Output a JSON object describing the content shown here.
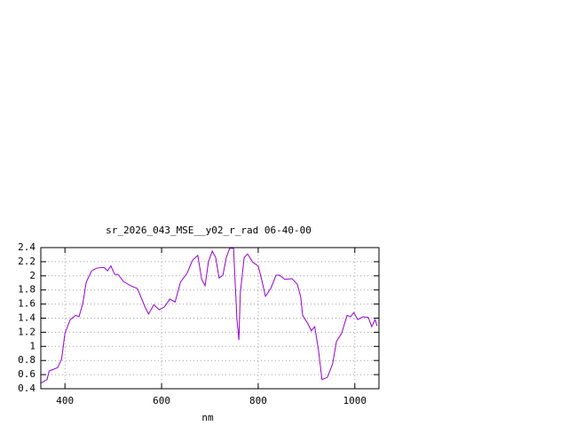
{
  "chart_data": {
    "type": "line",
    "title": "sr_2026_043_MSE__y02_r_rad 06-40-00",
    "x_label": "nm",
    "x": [
      350,
      363,
      367,
      378,
      385,
      393,
      400,
      411,
      422,
      429,
      437,
      444,
      455,
      466,
      481,
      488,
      495,
      503,
      510,
      521,
      536,
      550,
      565,
      573,
      584,
      595,
      606,
      617,
      628,
      639,
      653,
      664,
      675,
      683,
      690,
      697,
      705,
      712,
      719,
      727,
      734,
      741,
      749,
      752,
      756,
      760,
      763,
      771,
      778,
      789,
      800,
      807,
      815,
      826,
      837,
      844,
      855,
      870,
      881,
      888,
      892,
      903,
      910,
      917,
      925,
      932,
      943,
      954,
      962,
      973,
      984,
      991,
      998,
      1006,
      1017,
      1028,
      1035,
      1042,
      1046
    ],
    "series": [
      {
        "color": "#9400d3",
        "values": [
          0.48,
          0.53,
          0.65,
          0.68,
          0.7,
          0.82,
          1.19,
          1.38,
          1.44,
          1.42,
          1.61,
          1.91,
          2.07,
          2.11,
          2.12,
          2.07,
          2.14,
          2.02,
          2.02,
          1.92,
          1.86,
          1.82,
          1.57,
          1.46,
          1.59,
          1.52,
          1.56,
          1.67,
          1.63,
          1.91,
          2.04,
          2.22,
          2.29,
          1.95,
          1.86,
          2.2,
          2.35,
          2.26,
          1.97,
          2.01,
          2.26,
          2.39,
          2.39,
          1.95,
          1.38,
          1.09,
          1.76,
          2.26,
          2.31,
          2.19,
          2.14,
          1.95,
          1.71,
          1.82,
          2.01,
          2.01,
          1.95,
          1.96,
          1.88,
          1.7,
          1.44,
          1.32,
          1.22,
          1.28,
          0.94,
          0.53,
          0.56,
          0.75,
          1.07,
          1.19,
          1.44,
          1.42,
          1.48,
          1.38,
          1.42,
          1.41,
          1.28,
          1.38,
          1.29
        ]
      }
    ],
    "xlim": [
      350,
      1050
    ],
    "xticks": [
      400,
      600,
      800,
      1000
    ],
    "ylim": [
      0.4,
      2.4
    ],
    "yticks": [
      0.4,
      0.6,
      0.8,
      1,
      1.2,
      1.4,
      1.6,
      1.8,
      2,
      2.2,
      2.4
    ],
    "grid": true
  }
}
